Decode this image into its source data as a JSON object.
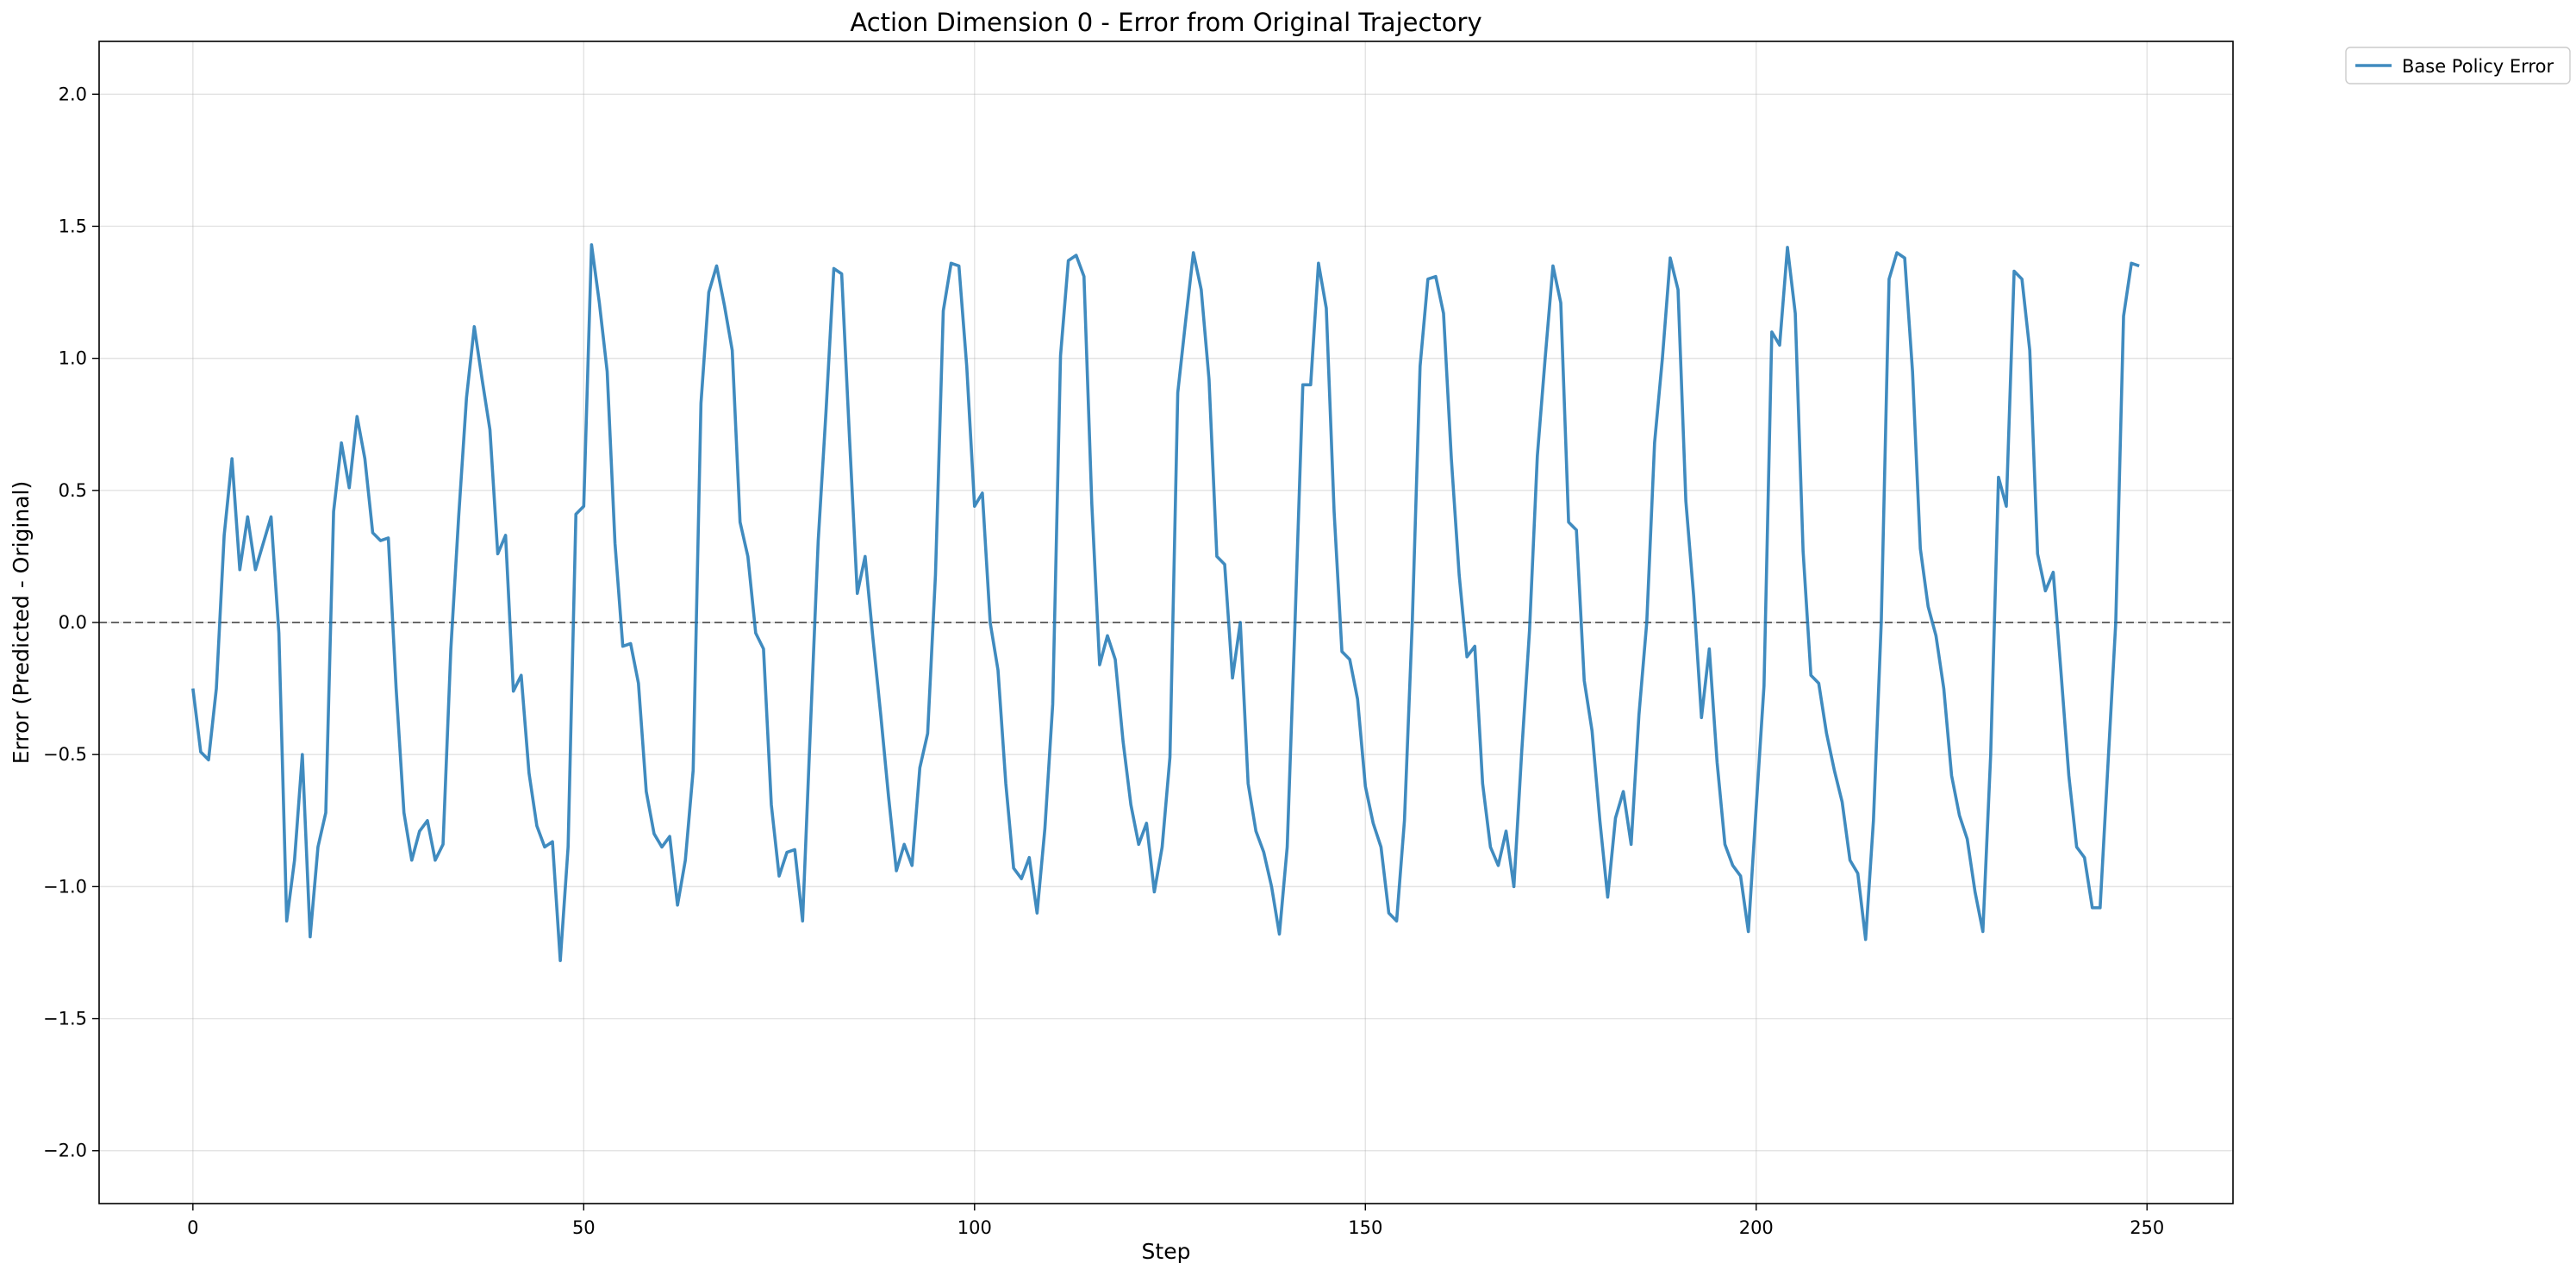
{
  "chart_data": {
    "type": "line",
    "title": "Action Dimension 0 - Error from Original Trajectory",
    "xlabel": "Step",
    "ylabel": "Error (Predicted - Original)",
    "xlim": [
      -12,
      261
    ],
    "ylim": [
      -2.2,
      2.2
    ],
    "xticks": [
      0,
      50,
      100,
      150,
      200,
      250
    ],
    "yticks": [
      -2.0,
      -1.5,
      -1.0,
      -0.5,
      0.0,
      0.5,
      1.0,
      1.5,
      2.0
    ],
    "xtick_labels": [
      "0",
      "50",
      "100",
      "150",
      "200",
      "250"
    ],
    "ytick_labels": [
      "−2.0",
      "−1.5",
      "−1.0",
      "−0.5",
      "0.0",
      "0.5",
      "1.0",
      "1.5",
      "2.0"
    ],
    "grid": true,
    "reference_line": {
      "y": 0.0,
      "style": "dashed",
      "color": "#555555"
    },
    "legend": {
      "placement": "outside-top-right"
    },
    "series": [
      {
        "name": "Base Policy Error",
        "color": "#1f77b4",
        "x_start": 0,
        "x_step": 1,
        "values": [
          -0.25,
          -0.49,
          -0.52,
          -0.25,
          0.33,
          0.62,
          0.2,
          0.4,
          0.2,
          0.3,
          0.4,
          -0.04,
          -1.13,
          -0.9,
          -0.5,
          -1.19,
          -0.85,
          -0.72,
          0.42,
          0.68,
          0.51,
          0.78,
          0.62,
          0.34,
          0.31,
          0.32,
          -0.25,
          -0.72,
          -0.9,
          -0.79,
          -0.75,
          -0.9,
          -0.84,
          -0.1,
          0.4,
          0.85,
          1.12,
          0.92,
          0.73,
          0.26,
          0.33,
          -0.26,
          -0.2,
          -0.57,
          -0.77,
          -0.85,
          -0.83,
          -1.28,
          -0.85,
          0.41,
          0.44,
          1.43,
          1.21,
          0.95,
          0.3,
          -0.09,
          -0.08,
          -0.23,
          -0.64,
          -0.8,
          -0.85,
          -0.81,
          -1.07,
          -0.9,
          -0.56,
          0.83,
          1.25,
          1.35,
          1.2,
          1.03,
          0.38,
          0.25,
          -0.04,
          -0.1,
          -0.69,
          -0.96,
          -0.87,
          -0.86,
          -1.13,
          -0.4,
          0.31,
          0.8,
          1.34,
          1.32,
          0.7,
          0.11,
          0.25,
          -0.06,
          -0.35,
          -0.66,
          -0.94,
          -0.84,
          -0.92,
          -0.55,
          -0.42,
          0.18,
          1.18,
          1.36,
          1.35,
          0.97,
          0.44,
          0.49,
          0.0,
          -0.18,
          -0.61,
          -0.93,
          -0.97,
          -0.89,
          -1.1,
          -0.78,
          -0.31,
          1.01,
          1.37,
          1.39,
          1.31,
          0.45,
          -0.16,
          -0.05,
          -0.14,
          -0.45,
          -0.69,
          -0.84,
          -0.76,
          -1.02,
          -0.85,
          -0.51,
          0.87,
          1.14,
          1.4,
          1.26,
          0.92,
          0.25,
          0.22,
          -0.21,
          0.0,
          -0.61,
          -0.79,
          -0.87,
          -1.0,
          -1.18,
          -0.85,
          0.0,
          0.9,
          0.9,
          1.36,
          1.19,
          0.42,
          -0.11,
          -0.14,
          -0.29,
          -0.62,
          -0.76,
          -0.85,
          -1.1,
          -1.13,
          -0.75,
          0.0,
          0.97,
          1.3,
          1.31,
          1.17,
          0.62,
          0.18,
          -0.13,
          -0.09,
          -0.61,
          -0.85,
          -0.92,
          -0.79,
          -1.0,
          -0.49,
          -0.03,
          0.63,
          1.0,
          1.35,
          1.21,
          0.38,
          0.35,
          -0.22,
          -0.41,
          -0.75,
          -1.04,
          -0.74,
          -0.64,
          -0.84,
          -0.35,
          0.0,
          0.68,
          1.0,
          1.38,
          1.26,
          0.46,
          0.1,
          -0.36,
          -0.1,
          -0.53,
          -0.84,
          -0.92,
          -0.96,
          -1.17,
          -0.7,
          -0.24,
          1.1,
          1.05,
          1.42,
          1.17,
          0.27,
          -0.2,
          -0.23,
          -0.42,
          -0.56,
          -0.68,
          -0.9,
          -0.95,
          -1.2,
          -0.75,
          0.0,
          1.3,
          1.4,
          1.38,
          0.95,
          0.28,
          0.06,
          -0.05,
          -0.25,
          -0.58,
          -0.73,
          -0.82,
          -1.02,
          -1.17,
          -0.5,
          0.55,
          0.44,
          1.33,
          1.3,
          1.03,
          0.26,
          0.12,
          0.19,
          -0.19,
          -0.58,
          -0.85,
          -0.89,
          -1.08,
          -1.08,
          -0.54,
          0.0,
          1.16,
          1.36,
          1.35
        ]
      }
    ]
  }
}
